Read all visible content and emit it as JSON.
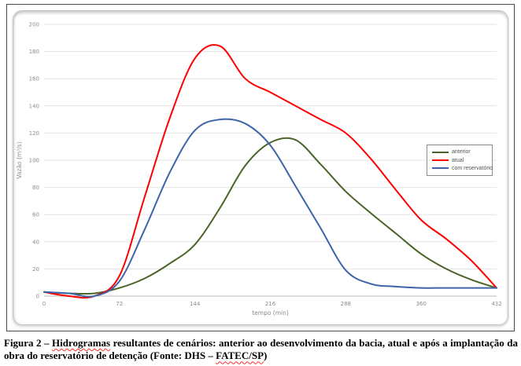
{
  "figure": {
    "caption": {
      "prefix": "Figura 2 – ",
      "misspelled_word": "Hidrogramas",
      "middle": " resultantes de cenários: anterior ao desenvolvimento da bacia, atual e após a implantação da obra do reservatório de detenção (Fonte: DHS – ",
      "source_word": "FATEC/SP",
      "suffix": ")"
    }
  },
  "chart_data": {
    "type": "line",
    "title": "",
    "xlabel": "tempo (min)",
    "ylabel": "Vazão (m³/s)",
    "xlim": [
      0,
      432
    ],
    "ylim": [
      0,
      200
    ],
    "x_ticks": [
      0,
      72,
      144,
      216,
      288,
      360,
      432
    ],
    "y_tick_step": 20,
    "grid": true,
    "legend_position": "middle-right",
    "x": [
      0,
      24,
      48,
      72,
      96,
      120,
      144,
      168,
      192,
      216,
      240,
      264,
      288,
      312,
      336,
      360,
      384,
      408,
      432
    ],
    "series": [
      {
        "name": "anterior",
        "color": "#4a6428",
        "values": [
          3,
          2,
          2,
          6,
          13,
          24,
          38,
          65,
          96,
          113,
          115,
          97,
          77,
          61,
          46,
          31,
          20,
          12,
          6
        ]
      },
      {
        "name": "atual",
        "color": "#ff0000",
        "values": [
          3,
          0,
          0,
          15,
          73,
          131,
          175,
          184,
          160,
          150,
          140,
          130,
          120,
          101,
          78,
          56,
          42,
          26,
          6
        ]
      },
      {
        "name": "com reservatório",
        "color": "#3d63a8",
        "values": [
          3,
          2,
          0,
          11,
          49,
          91,
          122,
          130,
          127,
          111,
          81,
          50,
          19,
          9,
          7,
          6,
          6,
          6,
          6
        ]
      }
    ],
    "peaks": [
      {
        "series": "anterior",
        "t": 228,
        "value": 116
      },
      {
        "series": "atual",
        "t": 158,
        "value": 184
      },
      {
        "series": "com reservatório",
        "t": 170,
        "value": 131
      }
    ],
    "colors": {
      "gridline": "#e3e3e3",
      "axis_line": "#b9b9b9",
      "tick_text": "#8c8c8c"
    }
  }
}
